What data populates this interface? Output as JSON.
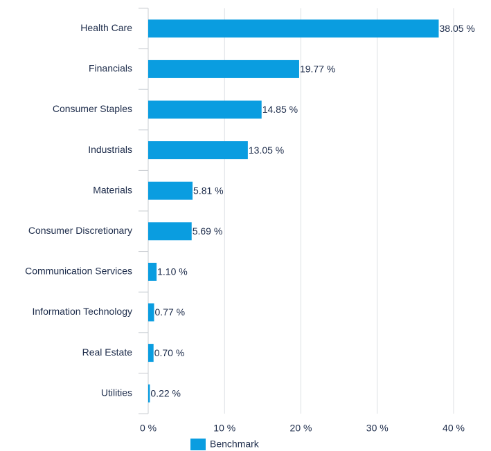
{
  "chart_data": {
    "type": "bar",
    "orientation": "horizontal",
    "categories": [
      "Health Care",
      "Financials",
      "Consumer Staples",
      "Industrials",
      "Materials",
      "Consumer Discretionary",
      "Communication Services",
      "Information Technology",
      "Real Estate",
      "Utilities"
    ],
    "series": [
      {
        "name": "Benchmark",
        "color": "#0a9de0",
        "values": [
          38.05,
          19.77,
          14.85,
          13.05,
          5.81,
          5.69,
          1.1,
          0.77,
          0.7,
          0.22
        ],
        "value_labels": [
          "38.05 %",
          "19.77 %",
          "14.85 %",
          "13.05 %",
          "5.81 %",
          "5.69 %",
          "1.10 %",
          "0.77 %",
          "0.70 %",
          "0.22 %"
        ]
      }
    ],
    "xlim": [
      0,
      40
    ],
    "xticks": [
      {
        "value": 0,
        "label": "0 %"
      },
      {
        "value": 10,
        "label": "10 %"
      },
      {
        "value": 20,
        "label": "20 %"
      },
      {
        "value": 30,
        "label": "30 %"
      },
      {
        "value": 40,
        "label": "40 %"
      }
    ],
    "grid": true,
    "legend": "bottom"
  }
}
